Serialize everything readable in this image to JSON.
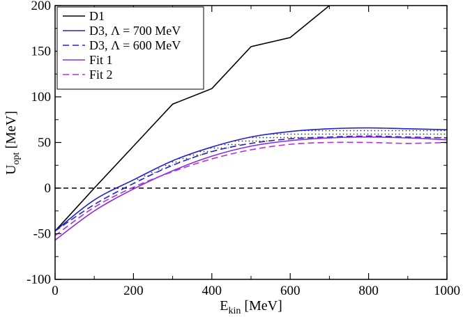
{
  "chart_data": {
    "type": "line",
    "xlabel_main": "E",
    "xlabel_sub": "kin",
    "xlabel_unit": " [MeV]",
    "ylabel_main": "U",
    "ylabel_sub": "opt",
    "ylabel_unit": " [MeV]",
    "xlim": [
      0,
      1000
    ],
    "ylim": [
      -100,
      200
    ],
    "x_ticks": [
      0,
      200,
      400,
      600,
      800,
      1000
    ],
    "y_ticks": [
      -100,
      -50,
      0,
      50,
      100,
      150,
      200
    ],
    "grid": false,
    "legend_position": "top-left",
    "zero_line": {
      "y": 0,
      "style": "dashed",
      "color": "#000000"
    },
    "band": {
      "between": [
        "D3, Λ = 700 MeV",
        "D3, Λ = 600 MeV"
      ],
      "fill": "dotted",
      "x_range": [
        180,
        1000
      ]
    },
    "series": [
      {
        "name": "D1",
        "color": "#000000",
        "dash": "solid",
        "x": [
          0,
          100,
          200,
          300,
          400,
          500,
          600,
          700
        ],
        "y": [
          -47,
          0,
          46,
          92,
          109,
          155,
          165,
          200
        ]
      },
      {
        "name": "D3, Λ = 700 MeV",
        "color": "#2020d0",
        "dash": "solid",
        "x": [
          0,
          100,
          200,
          300,
          400,
          500,
          600,
          700,
          800,
          900,
          1000
        ],
        "y": [
          -47,
          -13,
          9,
          30,
          45,
          56,
          62,
          65,
          66,
          65,
          64
        ]
      },
      {
        "name": "D3, Λ = 600 MeV",
        "color": "#2020d0",
        "dash": "dashed",
        "x": [
          0,
          100,
          200,
          300,
          400,
          500,
          600,
          700,
          800,
          900,
          1000
        ],
        "y": [
          -47,
          -18,
          5,
          25,
          40,
          49,
          54,
          56,
          57,
          56,
          55
        ]
      },
      {
        "name": "Fit 1",
        "color": "#8a2be2",
        "dash": "solid",
        "x": [
          0,
          100,
          200,
          300,
          400,
          500,
          600,
          700,
          800,
          900,
          1000
        ],
        "y": [
          -57,
          -25,
          -1,
          19,
          35,
          46,
          52,
          55,
          56,
          55,
          53
        ]
      },
      {
        "name": "Fit 2",
        "color": "#b030e0",
        "dash": "dashed",
        "x": [
          0,
          100,
          200,
          300,
          400,
          500,
          600,
          700,
          800,
          900,
          1000
        ],
        "y": [
          -52,
          -21,
          1,
          18,
          32,
          42,
          48,
          50,
          50,
          49,
          50
        ]
      }
    ]
  }
}
